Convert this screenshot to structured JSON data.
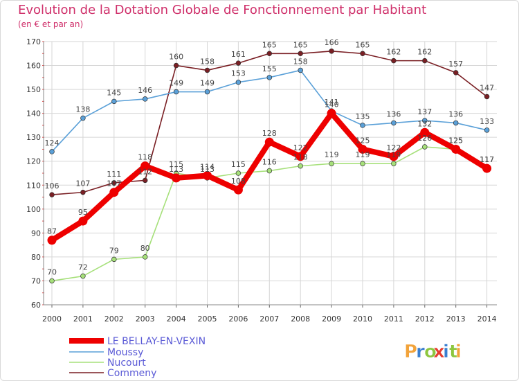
{
  "header": {
    "title": "Evolution de la Dotation Globale de Fonctionnement par Habitant",
    "subtitle": "(en € et par an)"
  },
  "brand": {
    "logo_text": "Proxiti",
    "colors": [
      "#f2a33a",
      "#3a7fd0",
      "#8dc63f",
      "#e63c2f",
      "#3a7fd0",
      "#8dc63f",
      "#f2a33a"
    ]
  },
  "chart_data": {
    "type": "line",
    "title": "Evolution de la Dotation Globale de Fonctionnement par Habitant",
    "subtitle": "(en € et par an)",
    "xlabel": "",
    "ylabel": "",
    "x": [
      2000,
      2001,
      2002,
      2003,
      2004,
      2005,
      2006,
      2007,
      2008,
      2009,
      2010,
      2011,
      2012,
      2013,
      2014
    ],
    "ylim": [
      60,
      170
    ],
    "yticks": [
      60,
      70,
      80,
      90,
      100,
      110,
      120,
      130,
      140,
      150,
      160,
      170
    ],
    "grid": true,
    "legend": "bottom-left",
    "series": [
      {
        "name": "Commeny",
        "color": "#7a1f24",
        "values": [
          106,
          107,
          111,
          112,
          160,
          158,
          161,
          165,
          165,
          166,
          165,
          162,
          162,
          157,
          147
        ]
      },
      {
        "name": "Moussy",
        "color": "#5aa0d8",
        "values": [
          124,
          138,
          145,
          146,
          149,
          149,
          153,
          155,
          158,
          141,
          135,
          136,
          137,
          136,
          133
        ]
      },
      {
        "name": "Nucourt",
        "color": "#a6e07a",
        "values": [
          70,
          72,
          79,
          80,
          115,
          113,
          115,
          116,
          118,
          119,
          119,
          119,
          126,
          125,
          117
        ]
      },
      {
        "name": "LE BELLAY-EN-VEXIN",
        "color": "#ee0000",
        "values": [
          87,
          95,
          107,
          118,
          113,
          114,
          108,
          128,
          122,
          140,
          125,
          122,
          132,
          125,
          117
        ]
      }
    ],
    "legend_order": [
      "LE BELLAY-EN-VEXIN",
      "Moussy",
      "Nucourt",
      "Commeny"
    ]
  }
}
